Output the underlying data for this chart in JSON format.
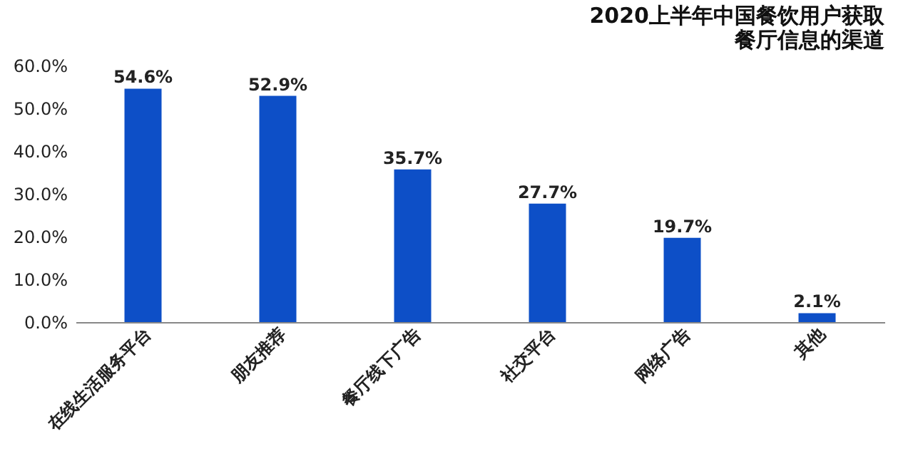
{
  "chart_data": {
    "type": "bar",
    "title": "2020上半年中国餐饮用户获取餐厅信息的渠道",
    "categories": [
      "在线生活服务平台",
      "朋友推荐",
      "餐厅线下广告",
      "社交平台",
      "网络广告",
      "其他"
    ],
    "values": [
      54.6,
      52.9,
      35.7,
      27.7,
      19.7,
      2.1
    ],
    "value_labels": [
      "54.6%",
      "52.9%",
      "35.7%",
      "27.7%",
      "19.7%",
      "2.1%"
    ],
    "color": "#0d4fc7",
    "ylim": [
      0,
      60
    ],
    "yticks": [
      {
        "value": 0,
        "label": "0.0%"
      },
      {
        "value": 10,
        "label": "10.0%"
      },
      {
        "value": 20,
        "label": "20.0%"
      },
      {
        "value": 30,
        "label": "30.0%"
      },
      {
        "value": 40,
        "label": "40.0%"
      },
      {
        "value": 50,
        "label": "50.0%"
      },
      {
        "value": 60,
        "label": "60.0%"
      }
    ],
    "grid": false
  }
}
